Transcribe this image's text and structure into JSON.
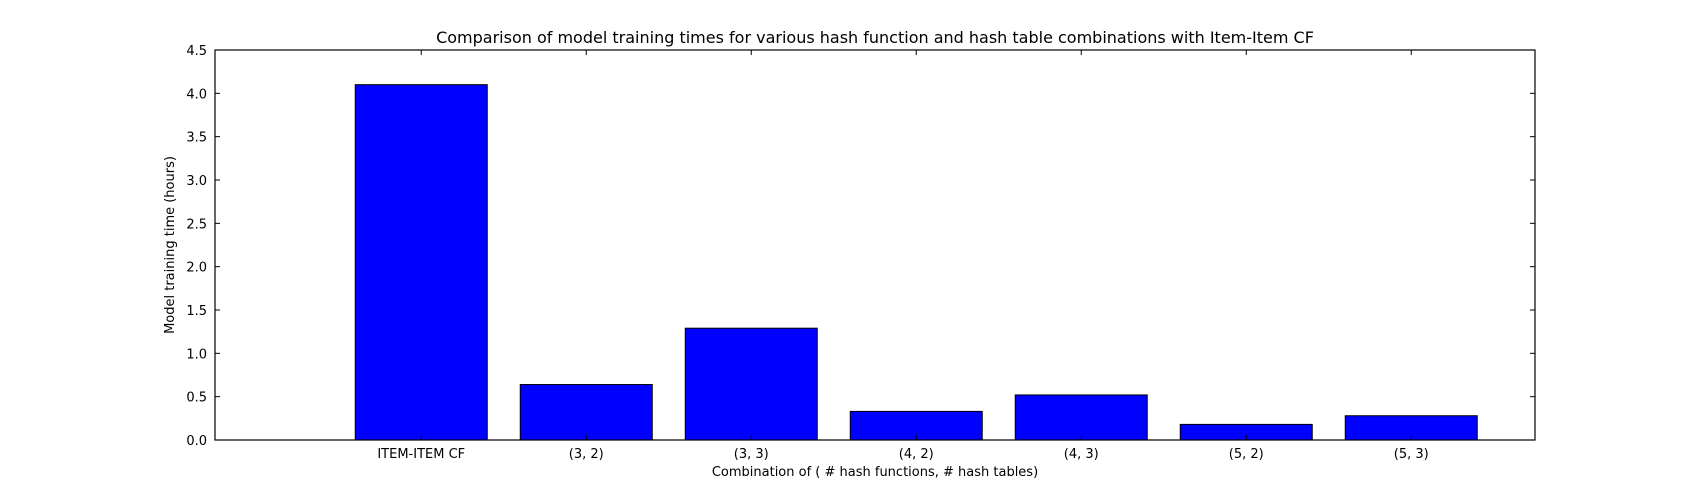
{
  "chart_data": {
    "type": "bar",
    "title": "Comparison of model training times for various hash function and hash table combinations with Item-Item CF",
    "xlabel": "Combination of ( # hash functions, # hash tables)",
    "ylabel": "Model training time (hours)",
    "categories": [
      "ITEM-ITEM CF",
      "(3, 2)",
      "(3, 3)",
      "(4, 2)",
      "(4, 3)",
      "(5, 2)",
      "(5, 3)"
    ],
    "values": [
      4.1,
      0.64,
      1.29,
      0.33,
      0.52,
      0.18,
      0.28
    ],
    "ylim": [
      0,
      4.5
    ],
    "yticks": [
      0.0,
      0.5,
      1.0,
      1.5,
      2.0,
      2.5,
      3.0,
      3.5,
      4.0,
      4.5
    ],
    "ytick_labels": [
      "0.0",
      "0.5",
      "1.0",
      "1.5",
      "2.0",
      "2.5",
      "3.0",
      "3.5",
      "4.0",
      "4.5"
    ],
    "bar_color": "#0000ff",
    "edge_color": "#000000",
    "grid": false,
    "legend": "none"
  }
}
